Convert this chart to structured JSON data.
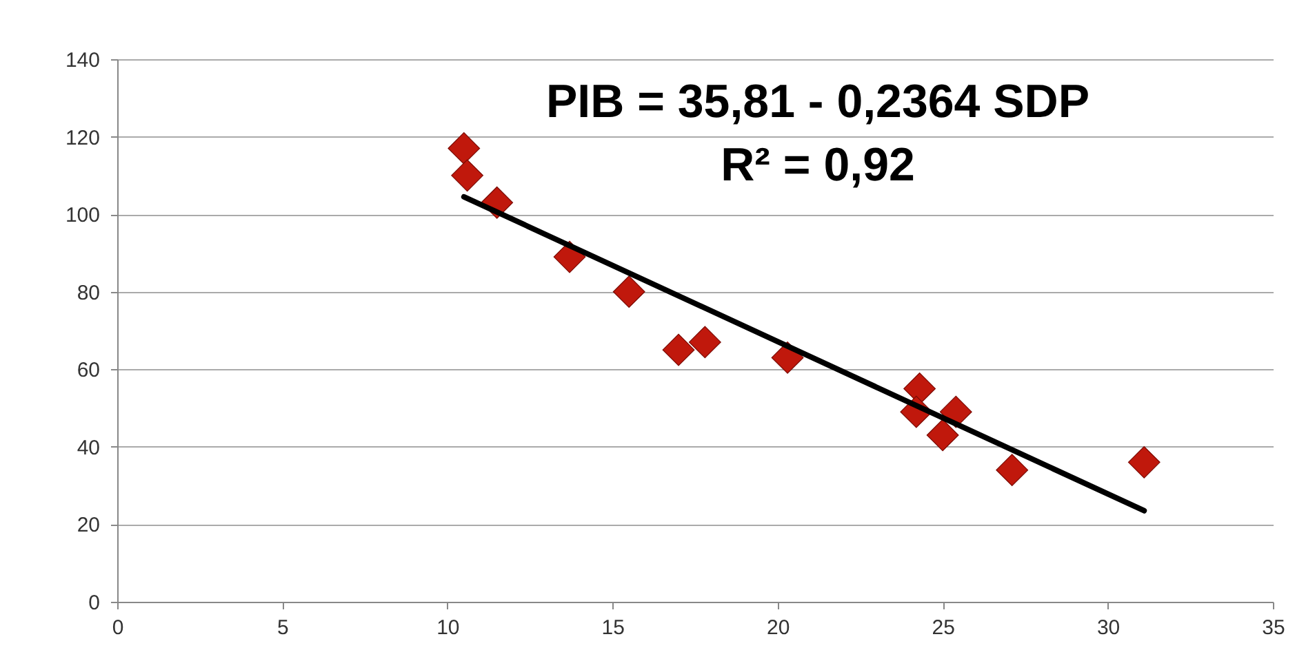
{
  "chart_data": {
    "type": "scatter",
    "annotations": [
      "PIB = 35,81 - 0,2364 SDP",
      "R² = 0,92"
    ],
    "series": [
      {
        "color": "#c0180c",
        "marker": "diamond",
        "x": [
          10.5,
          10.6,
          11.5,
          13.7,
          15.5,
          17.0,
          17.8,
          20.3,
          24.3,
          24.2,
          25.4,
          25.0,
          27.1,
          31.1
        ],
        "values": [
          117,
          110,
          103,
          89,
          80,
          65,
          67,
          63,
          55,
          49,
          49,
          43,
          34,
          36
        ]
      },
      {
        "type": "line",
        "color": "#000000",
        "marker": "none",
        "x": [
          10.5,
          31.1
        ],
        "values": [
          104.5,
          23.5
        ]
      }
    ],
    "xlim": [
      0,
      35
    ],
    "xticks": [
      0,
      5,
      10,
      15,
      20,
      25,
      30,
      35
    ],
    "ylim": [
      0,
      140
    ],
    "yticks": [
      0,
      20,
      40,
      60,
      80,
      100,
      120,
      140
    ],
    "grid": "y"
  }
}
